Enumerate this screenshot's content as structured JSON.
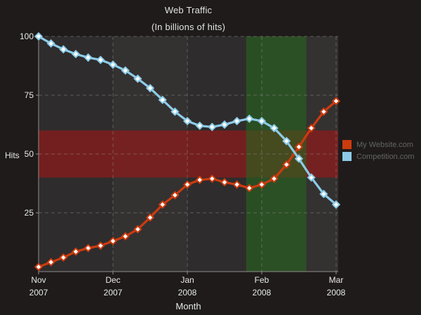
{
  "page": {
    "background": "#1f1b1b"
  },
  "header": {
    "title": "Web Traffic",
    "subtitle": "(In billions of hits)"
  },
  "axes": {
    "y_axis_label": "Hits",
    "x_axis_label": "Month"
  },
  "chart_data": {
    "type": "line",
    "title": "Web Traffic",
    "subtitle": "(In billions of hits)",
    "xlabel": "Month",
    "ylabel": "Hits",
    "ylim": [
      0,
      100
    ],
    "y_ticks": [
      25,
      50,
      75,
      100
    ],
    "x_ticks": [
      {
        "month": "Nov",
        "year": "2007"
      },
      {
        "month": "Dec",
        "year": "2007"
      },
      {
        "month": "Jan",
        "year": "2008"
      },
      {
        "month": "Feb",
        "year": "2008"
      },
      {
        "month": "Mar",
        "year": "2008"
      }
    ],
    "x_sampling": "6 evenly spaced samples per month, 25 points from Nov 2007 to Mar 2008",
    "grid": "dashed",
    "legend_position": "right",
    "marker": "diamond-white-fill-colored-outline",
    "series": [
      {
        "name": "My Website.com",
        "color": "#cc3b0e",
        "values": [
          2,
          4,
          6,
          8.5,
          10,
          11,
          13,
          15,
          18,
          23,
          28.5,
          32.5,
          37,
          39,
          39.5,
          38,
          37,
          35.5,
          37,
          39.5,
          45.5,
          53,
          61,
          68,
          72.5
        ]
      },
      {
        "name": "Competition.com",
        "color": "#8ccbe8",
        "values": [
          100,
          97,
          94.5,
          92.5,
          91,
          90,
          88,
          85.5,
          82,
          78,
          73,
          68,
          64,
          62,
          61.5,
          62.5,
          64,
          65,
          64,
          61,
          55.5,
          48,
          40,
          33,
          28.5
        ]
      }
    ],
    "bands": {
      "horizontal_band": {
        "axis": "y",
        "from": 40,
        "to": 60,
        "color": "rgba(160,25,25,0.62)"
      },
      "vertical_band": {
        "axis": "x",
        "from_month": 2.79,
        "to_month": 3.6,
        "color": "rgba(40,100,30,0.62)"
      }
    },
    "colors": {
      "plot_background": "#343131",
      "plot_background_alt_column": "rgba(0,0,0,0.10)",
      "gridline": "#8a8a8a",
      "axis_line": "#918d8d",
      "tick_label": "#e8e8e8",
      "legend_text": "#636363"
    }
  }
}
